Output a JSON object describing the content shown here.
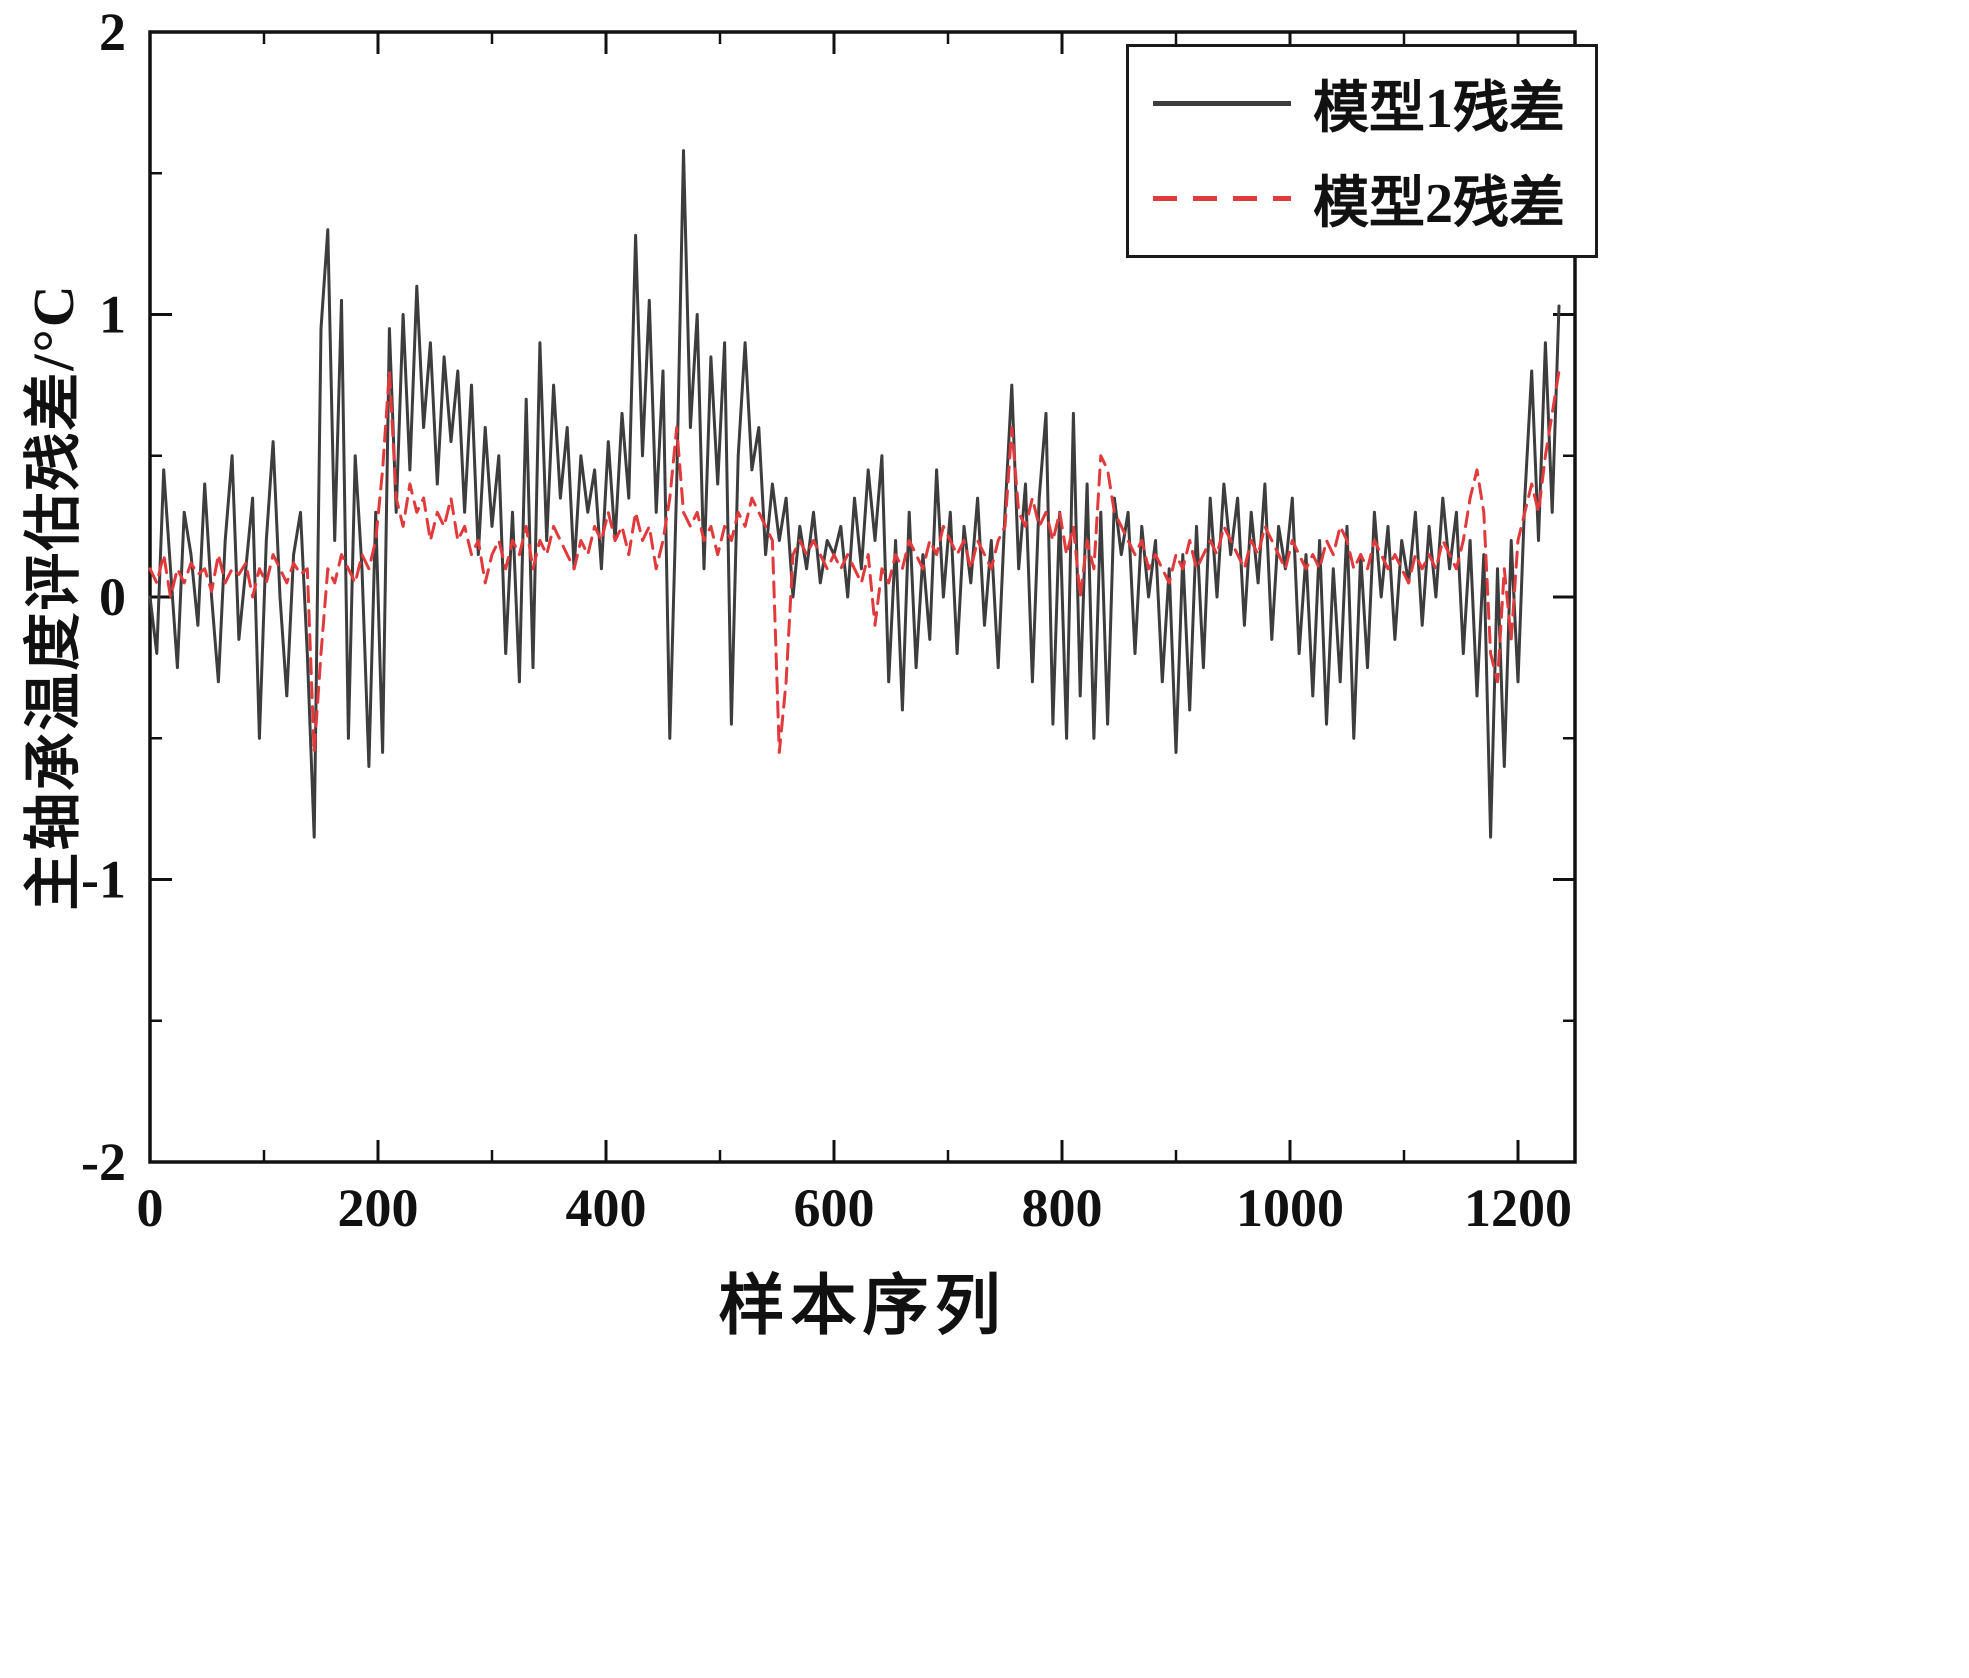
{
  "figure": {
    "background": "#ffffff",
    "frame_color": "#111111"
  },
  "axes": {
    "x_label": "样本序列",
    "y_label": "主轴承温度评估残差/°C",
    "x_ticks": [
      0,
      200,
      400,
      600,
      800,
      1000,
      1200
    ],
    "y_ticks": [
      -2,
      -1,
      0,
      1,
      2
    ],
    "x_minor_step": 100,
    "y_minor_step": 0.5,
    "x_range": [
      0,
      1250
    ],
    "y_range": [
      -2,
      2
    ]
  },
  "legend": {
    "position": "top-right",
    "items": [
      {
        "label": "模型1残差",
        "color": "#3d3d3d",
        "style": "solid"
      },
      {
        "label": "模型2残差",
        "color": "#e03a3c",
        "style": "dashed"
      }
    ]
  },
  "chart_data": {
    "type": "line",
    "title": "",
    "xlabel": "样本序列",
    "ylabel": "主轴承温度评估残差/°C",
    "xlim": [
      0,
      1250
    ],
    "ylim": [
      -2,
      2
    ],
    "grid": false,
    "legend_position": "top-right",
    "x_start": 0,
    "x_step": 6,
    "series": [
      {
        "name": "模型1残差",
        "color": "#3d3d3d",
        "line": "solid",
        "values": [
          0,
          -0.2,
          0.45,
          0.1,
          -0.25,
          0.3,
          0.15,
          -0.1,
          0.4,
          0,
          -0.3,
          0.2,
          0.5,
          -0.15,
          0.1,
          0.35,
          -0.5,
          0.2,
          0.55,
          0,
          -0.35,
          0.15,
          0.3,
          -0.2,
          -0.85,
          0.95,
          1.3,
          0.2,
          1.05,
          -0.5,
          0.5,
          0.1,
          -0.6,
          0.3,
          -0.55,
          0.95,
          0.3,
          1,
          0.45,
          1.1,
          0.6,
          0.9,
          0.4,
          0.85,
          0.55,
          0.8,
          0.3,
          0.75,
          0.15,
          0.6,
          0.25,
          0.5,
          -0.2,
          0.3,
          -0.3,
          0.7,
          -0.25,
          0.9,
          0.2,
          0.75,
          0.35,
          0.6,
          0.1,
          0.5,
          0.3,
          0.45,
          0.1,
          0.55,
          0.2,
          0.65,
          0.35,
          1.28,
          0.5,
          1.05,
          0.3,
          0.8,
          -0.5,
          0.4,
          1.58,
          0.6,
          1,
          0.1,
          0.85,
          0.4,
          0.9,
          -0.45,
          0.5,
          0.9,
          0.45,
          0.6,
          0.15,
          0.4,
          0.2,
          0.35,
          0,
          0.25,
          0.1,
          0.3,
          0.05,
          0.2,
          0.15,
          0.25,
          0,
          0.35,
          0.1,
          0.45,
          0.2,
          0.5,
          -0.3,
          0.2,
          -0.4,
          0.3,
          -0.25,
          0.15,
          -0.15,
          0.45,
          0,
          0.3,
          -0.2,
          0.25,
          0.05,
          0.35,
          -0.1,
          0.2,
          -0.25,
          0.3,
          0.75,
          0.1,
          0.4,
          -0.3,
          0.35,
          0.65,
          -0.45,
          0.3,
          -0.5,
          0.65,
          -0.35,
          0.4,
          -0.5,
          0.3,
          -0.45,
          0.35,
          0.15,
          0.3,
          -0.2,
          0.25,
          0,
          0.2,
          -0.3,
          0.1,
          -0.55,
          0.15,
          -0.4,
          0.25,
          -0.25,
          0.35,
          0,
          0.4,
          0.15,
          0.35,
          -0.1,
          0.3,
          0.05,
          0.4,
          -0.15,
          0.25,
          0.1,
          0.35,
          -0.2,
          0.15,
          -0.35,
          0.2,
          -0.45,
          0.1,
          -0.3,
          0.25,
          -0.5,
          0.15,
          -0.25,
          0.3,
          0,
          0.25,
          -0.15,
          0.2,
          0.05,
          0.3,
          -0.1,
          0.25,
          0,
          0.35,
          0.1,
          0.3,
          -0.2,
          0.2,
          -0.35,
          0.15,
          -0.85,
          0.1,
          -0.6,
          0.2,
          -0.3,
          0.35,
          0.8,
          0.2,
          0.9,
          0.3,
          1.03
        ]
      },
      {
        "name": "模型2残差",
        "color": "#e03a3c",
        "line": "dashed",
        "values": [
          0.1,
          0.05,
          0.15,
          0,
          0.1,
          0.05,
          0.12,
          0.08,
          0.1,
          0.02,
          0.15,
          0.05,
          0.1,
          0.08,
          0.12,
          0,
          0.1,
          0.05,
          0.15,
          0.1,
          0.05,
          0.12,
          0.08,
          0.1,
          -0.55,
          -0.2,
          0.1,
          0.05,
          0.15,
          0.1,
          0.05,
          0.15,
          0.1,
          0.2,
          0.45,
          0.8,
          0.35,
          0.25,
          0.4,
          0.3,
          0.35,
          0.2,
          0.3,
          0.25,
          0.35,
          0.2,
          0.25,
          0.15,
          0.2,
          0.05,
          0.15,
          0.2,
          0.1,
          0.2,
          0.15,
          0.25,
          0.1,
          0.2,
          0.15,
          0.25,
          0.2,
          0.15,
          0.1,
          0.2,
          0.15,
          0.25,
          0.2,
          0.3,
          0.2,
          0.25,
          0.15,
          0.3,
          0.2,
          0.25,
          0.1,
          0.2,
          0.35,
          0.6,
          0.3,
          0.25,
          0.3,
          0.2,
          0.25,
          0.15,
          0.25,
          0.2,
          0.3,
          0.25,
          0.35,
          0.3,
          0.25,
          0.2,
          -0.55,
          -0.3,
          0.15,
          0.2,
          0.15,
          0.2,
          0.15,
          0.1,
          0.15,
          0.1,
          0.15,
          0.1,
          0.05,
          0.15,
          -0.1,
          0.1,
          0.05,
          0.15,
          0.1,
          0.2,
          0.15,
          0.1,
          0.2,
          0.15,
          0.25,
          0.2,
          0.15,
          0.2,
          0.1,
          0.2,
          0.15,
          0.1,
          0.2,
          0.25,
          0.6,
          0.3,
          0.25,
          0.35,
          0.25,
          0.3,
          0.2,
          0.3,
          0.15,
          0.25,
          0,
          0.2,
          0.1,
          0.5,
          0.45,
          0.3,
          0.25,
          0.2,
          0.15,
          0.2,
          0.1,
          0.15,
          0.1,
          0.05,
          0.15,
          0.1,
          0.2,
          0.1,
          0.15,
          0.2,
          0.15,
          0.25,
          0.2,
          0.15,
          0.1,
          0.2,
          0.15,
          0.25,
          0.2,
          0.15,
          0.1,
          0.2,
          0.15,
          0.1,
          0.15,
          0.1,
          0.2,
          0.15,
          0.25,
          0.2,
          0.1,
          0.15,
          0.1,
          0.2,
          0.15,
          0.1,
          0.15,
          0.1,
          0.05,
          0.15,
          0.1,
          0.15,
          0.1,
          0.2,
          0.15,
          0.1,
          0.2,
          0.35,
          0.45,
          0.3,
          -0.2,
          -0.3,
          0.1,
          -0.15,
          0.2,
          0.3,
          0.4,
          0.3,
          0.5,
          0.65,
          0.8
        ]
      }
    ]
  }
}
